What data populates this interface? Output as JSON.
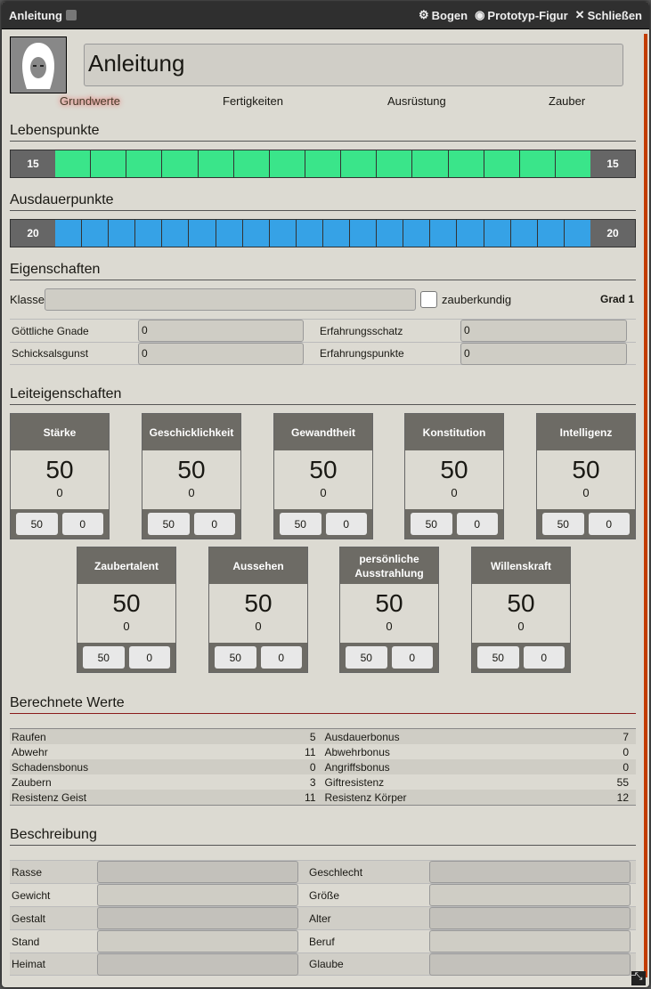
{
  "window": {
    "title": "Anleitung",
    "controls": [
      {
        "icon": "gear-icon",
        "label": "Bogen"
      },
      {
        "icon": "user-circle-icon",
        "label": "Prototyp-Figur"
      },
      {
        "icon": "close-icon",
        "label": "Schließen"
      }
    ]
  },
  "character": {
    "name": "Anleitung"
  },
  "tabs": [
    {
      "label": "Grundwerte",
      "active": true
    },
    {
      "label": "Fertigkeiten"
    },
    {
      "label": "Ausrüstung"
    },
    {
      "label": "Zauber"
    }
  ],
  "lebenspunkte": {
    "title": "Lebenspunkte",
    "current": "15",
    "max": "15",
    "cells": 15,
    "color": "#3ae58a"
  },
  "ausdauerpunkte": {
    "title": "Ausdauerpunkte",
    "current": "20",
    "max": "20",
    "cells": 20,
    "color": "#36a2e6"
  },
  "eigenschaften": {
    "title": "Eigenschaften",
    "klasse_label": "Klasse",
    "klasse_value": "",
    "zauberkundig_label": "zauberkundig",
    "zauberkundig": false,
    "grad": "Grad 1",
    "fields": [
      {
        "label": "Göttliche Gnade",
        "value": "0"
      },
      {
        "label": "Erfahrungsschatz",
        "value": "0"
      },
      {
        "label": "Schicksalsgunst",
        "value": "0"
      },
      {
        "label": "Erfahrungspunkte",
        "value": "0"
      }
    ]
  },
  "leiteigenschaften": {
    "title": "Leiteigenschaften",
    "stats": [
      {
        "name": "Stärke",
        "value": "50",
        "bonus": "0",
        "base": "50",
        "mod": "0"
      },
      {
        "name": "Geschicklichkeit",
        "value": "50",
        "bonus": "0",
        "base": "50",
        "mod": "0"
      },
      {
        "name": "Gewandtheit",
        "value": "50",
        "bonus": "0",
        "base": "50",
        "mod": "0"
      },
      {
        "name": "Konstitution",
        "value": "50",
        "bonus": "0",
        "base": "50",
        "mod": "0"
      },
      {
        "name": "Intelligenz",
        "value": "50",
        "bonus": "0",
        "base": "50",
        "mod": "0"
      },
      {
        "name": "Zaubertalent",
        "value": "50",
        "bonus": "0",
        "base": "50",
        "mod": "0"
      },
      {
        "name": "Aussehen",
        "value": "50",
        "bonus": "0",
        "base": "50",
        "mod": "0"
      },
      {
        "name": "persönliche Ausstrahlung",
        "value": "50",
        "bonus": "0",
        "base": "50",
        "mod": "0"
      },
      {
        "name": "Willenskraft",
        "value": "50",
        "bonus": "0",
        "base": "50",
        "mod": "0"
      }
    ]
  },
  "berechnet": {
    "title": "Berechnete Werte",
    "rows": [
      [
        {
          "label": "Raufen",
          "value": "5"
        },
        {
          "label": "Ausdauerbonus",
          "value": "7"
        }
      ],
      [
        {
          "label": "Abwehr",
          "value": "11"
        },
        {
          "label": "Abwehrbonus",
          "value": "0"
        }
      ],
      [
        {
          "label": "Schadensbonus",
          "value": "0"
        },
        {
          "label": "Angriffsbonus",
          "value": "0"
        }
      ],
      [
        {
          "label": "Zaubern",
          "value": "3"
        },
        {
          "label": "Giftresistenz",
          "value": "55"
        }
      ],
      [
        {
          "label": "Resistenz Geist",
          "value": "11"
        },
        {
          "label": "Resistenz Körper",
          "value": "12"
        }
      ]
    ]
  },
  "beschreibung": {
    "title": "Beschreibung",
    "rows": [
      [
        {
          "label": "Rasse",
          "value": ""
        },
        {
          "label": "Geschlecht",
          "value": ""
        }
      ],
      [
        {
          "label": "Gewicht",
          "value": ""
        },
        {
          "label": "Größe",
          "value": ""
        }
      ],
      [
        {
          "label": "Gestalt",
          "value": ""
        },
        {
          "label": "Alter",
          "value": ""
        }
      ],
      [
        {
          "label": "Stand",
          "value": ""
        },
        {
          "label": "Beruf",
          "value": ""
        }
      ],
      [
        {
          "label": "Heimat",
          "value": ""
        },
        {
          "label": "Glaube",
          "value": ""
        }
      ]
    ]
  }
}
